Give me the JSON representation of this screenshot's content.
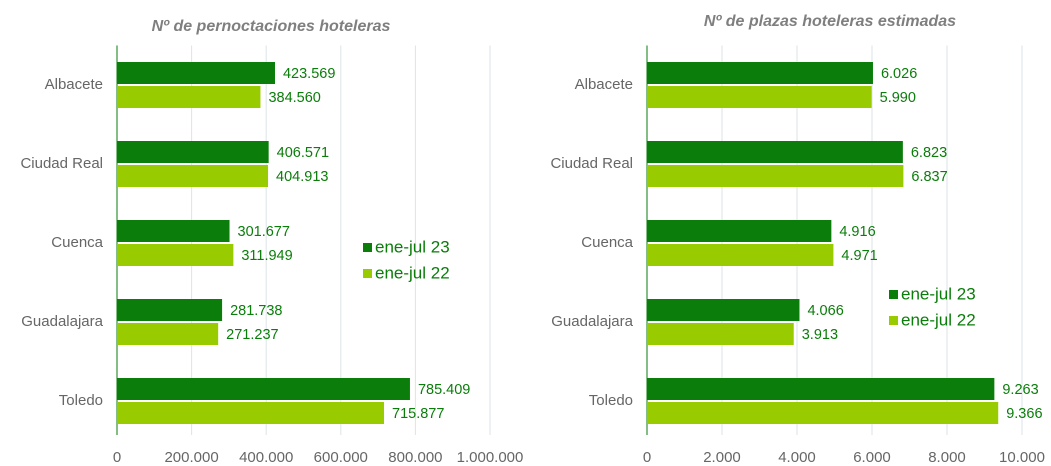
{
  "chart_data": [
    {
      "type": "bar",
      "orientation": "horizontal",
      "title": "Nº de pernoctaciones hoteleras",
      "categories": [
        "Albacete",
        "Ciudad Real",
        "Cuenca",
        "Guadalajara",
        "Toledo"
      ],
      "series": [
        {
          "name": "ene-jul 23",
          "color": "#0a7d0a",
          "values": [
            423569,
            406571,
            301677,
            281738,
            785409
          ],
          "value_labels": [
            "423.569",
            "406.571",
            "301.677",
            "281.738",
            "785.409"
          ]
        },
        {
          "name": "ene-jul 22",
          "color": "#99cc00",
          "values": [
            384560,
            404913,
            311949,
            271237,
            715877
          ],
          "value_labels": [
            "384.560",
            "404.913",
            "311.949",
            "271.237",
            "715.877"
          ]
        }
      ],
      "xlim": [
        0,
        1000000
      ],
      "xticks": [
        0,
        {
          "value": 200000,
          "label": "200.000"
        },
        {
          "value": 400000,
          "label": "400.000"
        },
        {
          "value": 600000,
          "label": "600.000"
        },
        {
          "value": 800000,
          "label": "800.000"
        },
        {
          "value": 1000000,
          "label": "1.000.000"
        }
      ],
      "grid": true,
      "legend": "right"
    },
    {
      "type": "bar",
      "orientation": "horizontal",
      "title": "Nº de plazas hoteleras estimadas",
      "categories": [
        "Albacete",
        "Ciudad Real",
        "Cuenca",
        "Guadalajara",
        "Toledo"
      ],
      "series": [
        {
          "name": "ene-jul 23",
          "color": "#0a7d0a",
          "values": [
            6026,
            6823,
            4916,
            4066,
            9263
          ],
          "value_labels": [
            "6.026",
            "6.823",
            "4.916",
            "4.066",
            "9.263"
          ]
        },
        {
          "name": "ene-jul 22",
          "color": "#99cc00",
          "values": [
            5990,
            6837,
            4971,
            3913,
            9366
          ],
          "value_labels": [
            "5.990",
            "6.837",
            "4.971",
            "3.913",
            "9.366"
          ]
        }
      ],
      "xlim": [
        0,
        10000
      ],
      "xticks": [
        0,
        {
          "value": 2000,
          "label": "2.000"
        },
        {
          "value": 4000,
          "label": "4.000"
        },
        {
          "value": 6000,
          "label": "6.000"
        },
        {
          "value": 8000,
          "label": "8.000"
        },
        {
          "value": 10000,
          "label": "10.000"
        }
      ],
      "grid": true,
      "legend": "right"
    }
  ]
}
